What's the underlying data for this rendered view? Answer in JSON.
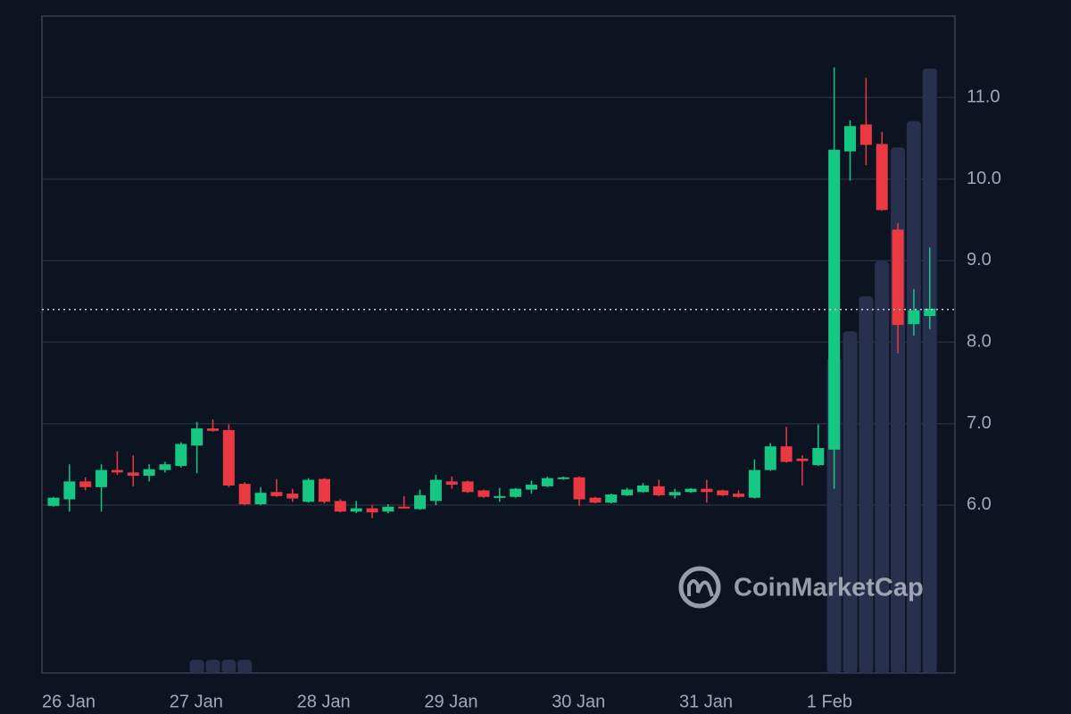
{
  "chart_data": {
    "type": "candlestick",
    "categories": [
      "26 Jan",
      null,
      null,
      null,
      null,
      null,
      null,
      null,
      "27 Jan",
      null,
      null,
      null,
      null,
      null,
      null,
      null,
      "28 Jan",
      null,
      null,
      null,
      null,
      null,
      null,
      null,
      "29 Jan",
      null,
      null,
      null,
      null,
      null,
      null,
      null,
      "30 Jan",
      null,
      null,
      null,
      null,
      null,
      null,
      null,
      "31 Jan",
      null,
      null,
      null,
      null,
      null,
      null,
      null,
      "1 Feb",
      null,
      null,
      null,
      null,
      null,
      null,
      null
    ],
    "open": [
      5.99,
      6.07,
      6.29,
      6.22,
      6.43,
      6.4,
      6.36,
      6.43,
      6.48,
      6.73,
      6.94,
      6.92,
      6.26,
      6.01,
      6.16,
      6.14,
      6.04,
      6.32,
      6.05,
      5.92,
      5.96,
      5.92,
      5.98,
      5.95,
      6.05,
      6.29,
      6.29,
      6.18,
      6.09,
      6.1,
      6.19,
      6.23,
      6.32,
      6.34,
      6.09,
      6.03,
      6.12,
      6.16,
      6.23,
      6.12,
      6.16,
      6.2,
      6.18,
      6.14,
      6.09,
      6.43,
      6.72,
      6.57,
      6.49,
      6.68,
      10.34,
      10.67,
      10.43,
      9.38,
      8.22,
      8.32
    ],
    "high": [
      6.1,
      6.5,
      6.34,
      6.5,
      6.66,
      6.61,
      6.5,
      6.53,
      6.77,
      7.02,
      7.05,
      6.99,
      6.28,
      6.22,
      6.32,
      6.2,
      6.33,
      6.33,
      6.07,
      6.05,
      6.0,
      6.01,
      6.11,
      6.19,
      6.37,
      6.35,
      6.3,
      6.19,
      6.21,
      6.21,
      6.3,
      6.35,
      6.35,
      6.35,
      6.1,
      6.14,
      6.21,
      6.27,
      6.31,
      6.2,
      6.21,
      6.31,
      6.19,
      6.18,
      6.56,
      6.76,
      6.96,
      6.61,
      6.99,
      11.37,
      10.72,
      11.24,
      10.58,
      9.46,
      8.65,
      9.16
    ],
    "low": [
      5.98,
      5.92,
      6.18,
      5.92,
      6.37,
      6.23,
      6.29,
      6.4,
      6.46,
      6.39,
      6.9,
      6.22,
      6.0,
      6.0,
      6.1,
      6.04,
      6.03,
      6.02,
      5.91,
      5.9,
      5.84,
      5.9,
      5.96,
      5.94,
      6.0,
      6.2,
      6.15,
      6.09,
      6.04,
      6.09,
      6.14,
      6.22,
      6.31,
      5.99,
      6.02,
      6.02,
      6.11,
      6.15,
      6.11,
      6.08,
      6.15,
      6.03,
      6.11,
      6.09,
      6.08,
      6.42,
      6.52,
      6.24,
      6.48,
      6.2,
      9.98,
      10.17,
      9.61,
      7.86,
      8.08,
      8.16
    ],
    "close": [
      6.09,
      6.29,
      6.22,
      6.43,
      6.4,
      6.36,
      6.44,
      6.5,
      6.75,
      6.94,
      6.91,
      6.24,
      6.01,
      6.15,
      6.11,
      6.08,
      6.31,
      6.04,
      5.92,
      5.96,
      5.91,
      5.98,
      5.97,
      6.12,
      6.31,
      6.25,
      6.16,
      6.1,
      6.11,
      6.2,
      6.25,
      6.33,
      6.34,
      6.07,
      6.03,
      6.13,
      6.19,
      6.24,
      6.12,
      6.16,
      6.2,
      6.16,
      6.12,
      6.1,
      6.43,
      6.72,
      6.53,
      6.54,
      6.7,
      10.36,
      10.65,
      10.42,
      9.62,
      8.21,
      8.39,
      8.41
    ],
    "volume": [
      0,
      0,
      0,
      0,
      0,
      0,
      0,
      0,
      0,
      3,
      3,
      3,
      3,
      0,
      0,
      0,
      0,
      0,
      0,
      0,
      0,
      0,
      0,
      0,
      0,
      0,
      0,
      0,
      0,
      0,
      0,
      0,
      0,
      0,
      0,
      0,
      0,
      0,
      0,
      0,
      0,
      0,
      0,
      0,
      0,
      0,
      0,
      0,
      0,
      72,
      78,
      86,
      94,
      120,
      126,
      138
    ],
    "volume_lim": [
      0,
      150
    ],
    "current_price": 8.4,
    "ylim": [
      3.94,
      12.0
    ],
    "yticks": [
      {
        "value": 6,
        "label": "6.0"
      },
      {
        "value": 7,
        "label": "7.0"
      },
      {
        "value": 8,
        "label": "8.0"
      },
      {
        "value": 9,
        "label": "9.0"
      },
      {
        "value": 10,
        "label": "10.0"
      },
      {
        "value": 11,
        "label": "11.0"
      }
    ],
    "grid": true,
    "up_color": "#16c784",
    "down_color": "#ea3943",
    "volume_color": "#27304d",
    "watermark": "CoinMarketCap"
  }
}
